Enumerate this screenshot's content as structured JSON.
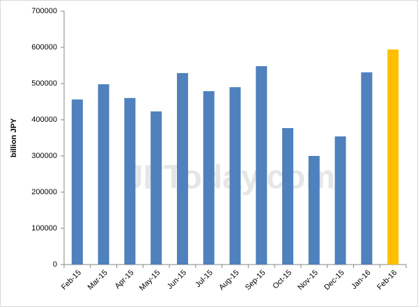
{
  "chart_data": {
    "type": "bar",
    "watermark": "JFToday.com",
    "y_label": "billion JPY",
    "categories": [
      "Feb-15",
      "Mar-15",
      "Apr-15",
      "May-15",
      "Jun-15",
      "Jul-15",
      "Aug-15",
      "Sep-15",
      "Oct-15",
      "Nov-15",
      "Dec-15",
      "Jan-16",
      "Feb-16"
    ],
    "values": [
      456000,
      498000,
      460000,
      423000,
      529000,
      479000,
      490000,
      548000,
      377000,
      300000,
      354000,
      531000,
      594000
    ],
    "colors": [
      "#4f81bd",
      "#4f81bd",
      "#4f81bd",
      "#4f81bd",
      "#4f81bd",
      "#4f81bd",
      "#4f81bd",
      "#4f81bd",
      "#4f81bd",
      "#4f81bd",
      "#4f81bd",
      "#4f81bd",
      "#ffc000"
    ],
    "ylim": [
      0,
      700000
    ],
    "yticks": [
      0,
      100000,
      200000,
      300000,
      400000,
      500000,
      600000,
      700000
    ],
    "grid": false
  }
}
